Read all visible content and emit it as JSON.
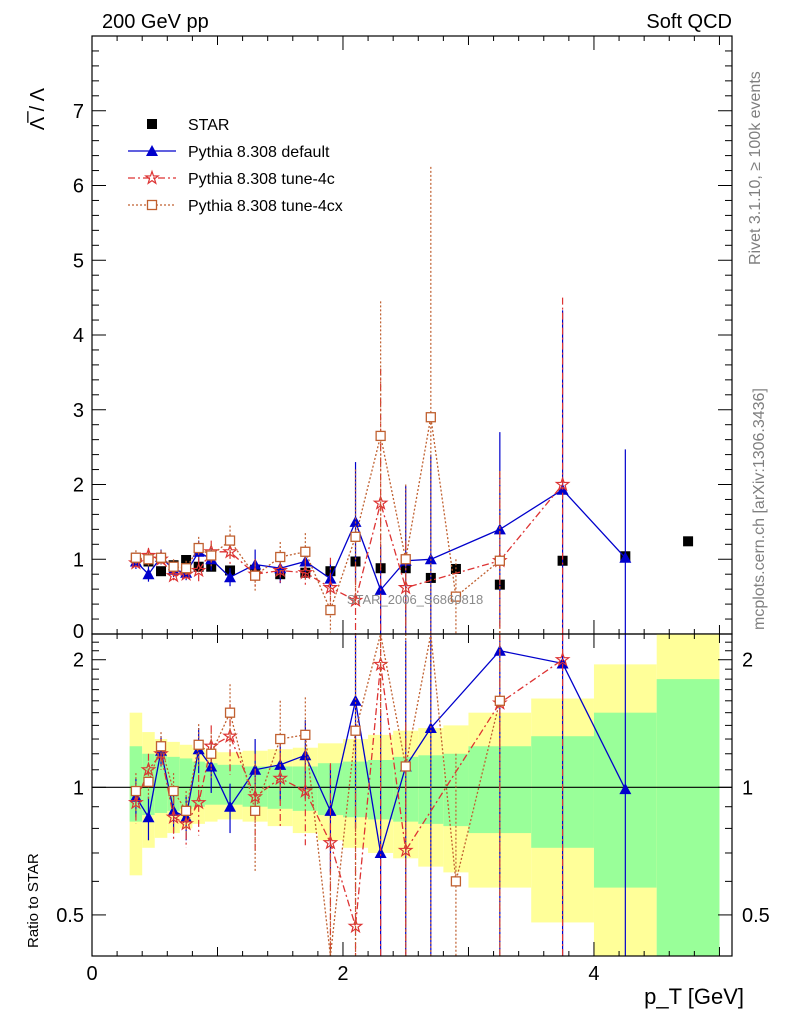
{
  "header": {
    "left": "200 GeV pp",
    "right": "Soft QCD"
  },
  "side_labels": {
    "rivet": "Rivet 3.1.10, ≥ 100k events",
    "mcplots": "mcplots.cern.ch [arXiv:1306.3436]"
  },
  "watermark": "STAR_2006_S6860818",
  "colors": {
    "star": "#000000",
    "default": "#0000cc",
    "tune4c": "#dd3333",
    "tune4cx": "#c06030",
    "band_green": "#99ff99",
    "band_yellow": "#ffff99"
  },
  "chart_data": {
    "type": "scatter",
    "x": [
      0.35,
      0.45,
      0.55,
      0.65,
      0.75,
      0.85,
      0.95,
      1.1,
      1.3,
      1.5,
      1.7,
      1.9,
      2.1,
      2.3,
      2.5,
      2.7,
      2.9,
      3.25,
      3.75,
      4.25,
      4.75
    ],
    "xlabel": "p_T [GeV]",
    "xlim": [
      0,
      5.1
    ],
    "xticks": [
      0,
      2,
      4
    ],
    "main": {
      "ylabel": "Λ̅ / Λ",
      "ylim": [
        0,
        8
      ],
      "yticks": [
        1,
        2,
        3,
        4,
        5,
        6,
        7
      ],
      "ytick_zero_label": "0"
    },
    "ratio": {
      "ylabel": "Ratio to STAR",
      "ylim": [
        0.4,
        2.3
      ],
      "yticks": [
        0.5,
        1,
        2
      ],
      "band_edges": [
        0.3,
        0.4,
        0.5,
        0.6,
        0.7,
        0.8,
        0.9,
        1.0,
        1.2,
        1.4,
        1.6,
        1.8,
        2.0,
        2.2,
        2.4,
        2.6,
        2.8,
        3.0,
        3.5,
        4.0,
        4.5,
        5.0
      ],
      "band_green_lo": [
        0.83,
        0.86,
        0.87,
        0.88,
        0.89,
        0.9,
        0.91,
        0.91,
        0.9,
        0.89,
        0.88,
        0.86,
        0.85,
        0.84,
        0.83,
        0.82,
        0.81,
        0.78,
        0.72,
        0.58,
        0.4
      ],
      "band_green_hi": [
        1.25,
        1.2,
        1.19,
        1.18,
        1.17,
        1.15,
        1.14,
        1.13,
        1.12,
        1.12,
        1.12,
        1.14,
        1.15,
        1.16,
        1.18,
        1.19,
        1.2,
        1.25,
        1.32,
        1.5,
        1.8
      ],
      "band_yellow_lo": [
        0.62,
        0.72,
        0.76,
        0.78,
        0.8,
        0.82,
        0.83,
        0.84,
        0.83,
        0.81,
        0.78,
        0.75,
        0.72,
        0.7,
        0.68,
        0.65,
        0.63,
        0.58,
        0.48,
        0.4,
        0.4
      ],
      "band_yellow_hi": [
        1.5,
        1.35,
        1.3,
        1.28,
        1.26,
        1.24,
        1.22,
        1.21,
        1.22,
        1.23,
        1.24,
        1.27,
        1.3,
        1.33,
        1.36,
        1.38,
        1.4,
        1.5,
        1.62,
        1.95,
        2.3
      ]
    },
    "series": [
      {
        "name": "STAR",
        "marker": "square-filled",
        "y": [
          1.02,
          0.97,
          0.84,
          0.92,
          0.99,
          0.9,
          0.9,
          0.85,
          0.86,
          0.8,
          0.82,
          0.84,
          0.97,
          0.88,
          0.88,
          0.75,
          0.87,
          0.66,
          0.98,
          1.04,
          1.24
        ],
        "ratio": [
          1,
          1,
          1,
          1,
          1,
          1,
          1,
          1,
          1,
          1,
          1,
          1,
          1,
          1,
          1,
          1,
          1,
          1,
          1,
          1,
          1
        ]
      },
      {
        "name": "Pythia 8.308 default",
        "marker": "triangle",
        "line": "solid",
        "y": [
          0.97,
          0.8,
          1.03,
          0.86,
          0.82,
          1.1,
          1.0,
          0.76,
          0.93,
          0.88,
          0.97,
          0.74,
          1.5,
          0.59,
          0.98,
          1.0,
          null,
          1.4,
          1.93,
          1.02,
          null
        ],
        "err": [
          0.1,
          0.1,
          0.1,
          0.1,
          0.1,
          0.15,
          0.15,
          0.12,
          0.2,
          0.2,
          0.2,
          0.2,
          0.8,
          0.6,
          1.0,
          1.4,
          null,
          1.3,
          2.4,
          1.45,
          null
        ],
        "ratio": [
          0.95,
          0.85,
          1.22,
          0.88,
          0.85,
          1.23,
          1.12,
          0.9,
          1.1,
          1.13,
          1.19,
          0.88,
          1.6,
          0.7,
          1.12,
          1.38,
          null,
          2.1,
          1.96,
          0.99,
          null
        ],
        "ratio_err": [
          0.1,
          0.1,
          0.1,
          0.1,
          0.1,
          0.15,
          0.15,
          0.12,
          0.2,
          0.2,
          0.25,
          0.25,
          0.8,
          0.8,
          1.1,
          1.8,
          null,
          2.0,
          2.4,
          1.4,
          null
        ]
      },
      {
        "name": "Pythia 8.308 tune-4c",
        "marker": "star",
        "line": "dashdot",
        "y": [
          0.95,
          1.05,
          1.0,
          0.78,
          0.8,
          0.85,
          1.1,
          1.1,
          0.8,
          0.85,
          0.82,
          0.62,
          0.45,
          1.75,
          0.62,
          null,
          null,
          0.98,
          2.0,
          null,
          null
        ],
        "err": [
          0.1,
          0.1,
          0.1,
          0.1,
          0.1,
          0.15,
          0.15,
          0.2,
          0.2,
          0.2,
          0.2,
          0.4,
          0.5,
          1.8,
          0.6,
          null,
          null,
          1.2,
          2.5,
          null,
          null
        ],
        "ratio": [
          0.92,
          1.1,
          1.2,
          0.85,
          0.82,
          0.92,
          1.25,
          1.32,
          0.95,
          1.05,
          0.98,
          0.74,
          0.47,
          1.95,
          0.71,
          null,
          null,
          1.58,
          2.0,
          null,
          null
        ],
        "ratio_err": [
          0.1,
          0.1,
          0.1,
          0.1,
          0.1,
          0.15,
          0.15,
          0.25,
          0.25,
          0.25,
          0.25,
          0.4,
          0.5,
          2.0,
          0.7,
          null,
          null,
          1.8,
          2.5,
          null,
          null
        ]
      },
      {
        "name": "Pythia 8.308 tune-4cx",
        "marker": "square-open",
        "line": "dotted",
        "y": [
          1.02,
          1.0,
          1.02,
          0.9,
          0.88,
          1.15,
          1.05,
          1.25,
          0.78,
          1.03,
          1.1,
          0.32,
          1.3,
          2.65,
          1.0,
          2.9,
          0.5,
          0.98,
          null,
          null,
          null
        ],
        "err": [
          0.1,
          0.1,
          0.1,
          0.1,
          0.1,
          0.15,
          0.15,
          0.2,
          0.2,
          0.2,
          0.25,
          0.3,
          0.9,
          1.8,
          1.0,
          3.35,
          0.5,
          1.2,
          null,
          null,
          null
        ],
        "ratio": [
          0.98,
          1.03,
          1.25,
          0.98,
          0.88,
          1.26,
          1.2,
          1.5,
          0.88,
          1.3,
          1.33,
          0.38,
          1.36,
          3.0,
          1.12,
          3.9,
          0.6,
          1.6,
          null,
          null,
          null
        ],
        "ratio_err": [
          0.1,
          0.1,
          0.1,
          0.1,
          0.1,
          0.15,
          0.15,
          0.25,
          0.25,
          0.3,
          0.3,
          0.35,
          1.2,
          2.0,
          1.3,
          3.5,
          0.6,
          1.8,
          null,
          null,
          null
        ]
      }
    ]
  }
}
